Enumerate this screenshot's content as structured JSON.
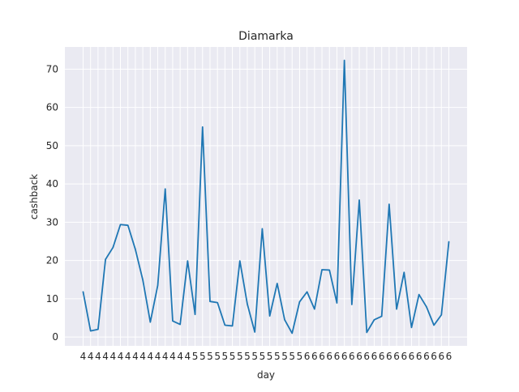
{
  "chart_data": {
    "type": "line",
    "title": "Diamarka",
    "xlabel": "day",
    "ylabel": "cashback",
    "ylim": [
      -2.3,
      75.8
    ],
    "yticks": [
      0,
      10,
      20,
      30,
      40,
      50,
      60,
      70
    ],
    "grid": true,
    "line_color": "#1f77b4",
    "background_color": "#eaeaf2",
    "grid_color": "#ffffff",
    "x": [
      "4",
      "4",
      "4",
      "4",
      "4",
      "4",
      "4",
      "4",
      "4",
      "4",
      "4",
      "4",
      "4",
      "4",
      "4",
      "5",
      "5",
      "5",
      "5",
      "5",
      "5",
      "5",
      "5",
      "5",
      "5",
      "5",
      "5",
      "5",
      "5",
      "5",
      "6",
      "6",
      "6",
      "6",
      "6",
      "6",
      "6",
      "6",
      "6",
      "6",
      "6",
      "6",
      "6",
      "6",
      "6",
      "6",
      "6",
      "6",
      "6",
      "6"
    ],
    "values": [
      11.8,
      1.6,
      2.0,
      20.3,
      23.4,
      29.4,
      29.2,
      22.9,
      14.9,
      3.9,
      13.5,
      38.7,
      4.2,
      3.3,
      19.9,
      5.9,
      54.9,
      9.3,
      9.0,
      3.1,
      2.9,
      19.9,
      8.6,
      1.3,
      28.3,
      5.5,
      14.0,
      4.5,
      1.0,
      9.2,
      11.8,
      7.3,
      17.6,
      17.5,
      8.9,
      72.3,
      8.5,
      35.8,
      1.2,
      4.5,
      5.4,
      34.7,
      7.3,
      16.9,
      2.5,
      11.1,
      7.9,
      3.1,
      5.8,
      24.9
    ]
  }
}
